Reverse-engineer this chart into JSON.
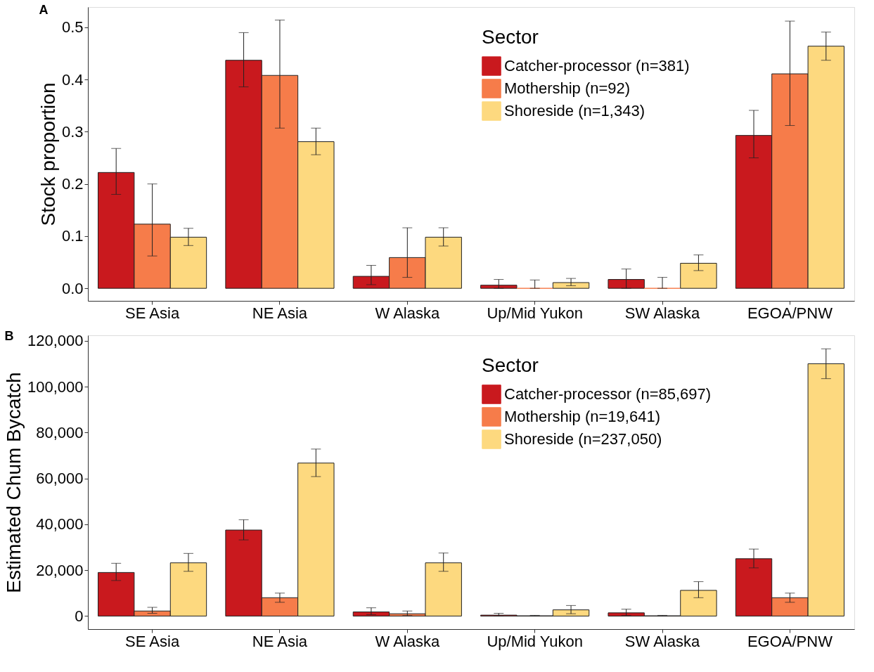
{
  "chart_data": [
    {
      "type": "bar",
      "title": "A",
      "ylabel": "Stock proportion",
      "legend_title": "Sector",
      "legend": "top",
      "grid": false,
      "categories": [
        "SE Asia",
        "NE Asia",
        "W Alaska",
        "Up/Mid Yukon",
        "SW Alaska",
        "EGOA/PNW"
      ],
      "ylim": [
        -0.024,
        0.539
      ],
      "yticks": [
        {
          "value": 0,
          "label": "0.0"
        },
        {
          "value": 0.1,
          "label": "0.1"
        },
        {
          "value": 0.2,
          "label": "0.2"
        },
        {
          "value": 0.3,
          "label": "0.3"
        },
        {
          "value": 0.4,
          "label": "0.4"
        },
        {
          "value": 0.5,
          "label": "0.5"
        }
      ],
      "series": [
        {
          "name": "Catcher-processor (n=381)",
          "color": "#c9191e",
          "values": [
            0.222,
            0.437,
            0.023,
            0.006,
            0.017,
            0.293
          ],
          "errors": [
            [
              0.18,
              0.268
            ],
            [
              0.386,
              0.49
            ],
            [
              0.007,
              0.044
            ],
            [
              0.0,
              0.017
            ],
            [
              0.0,
              0.037
            ],
            [
              0.25,
              0.341
            ]
          ]
        },
        {
          "name": "Mothership (n=92)",
          "color": "#f67c4a",
          "values": [
            0.123,
            0.408,
            0.059,
            0.0,
            0.0,
            0.411
          ],
          "errors": [
            [
              0.062,
              0.2
            ],
            [
              0.307,
              0.514
            ],
            [
              0.021,
              0.116
            ],
            [
              0.0,
              0.016
            ],
            [
              0.0,
              0.021
            ],
            [
              0.312,
              0.512
            ]
          ]
        },
        {
          "name": "Shoreside (n=1,343)",
          "color": "#fdd97f",
          "values": [
            0.098,
            0.281,
            0.098,
            0.011,
            0.048,
            0.464
          ],
          "errors": [
            [
              0.082,
              0.115
            ],
            [
              0.256,
              0.307
            ],
            [
              0.081,
              0.116
            ],
            [
              0.005,
              0.019
            ],
            [
              0.034,
              0.064
            ],
            [
              0.437,
              0.491
            ]
          ]
        }
      ]
    },
    {
      "type": "bar",
      "title": "B",
      "ylabel": "Estimated Chum Bycatch",
      "legend_title": "Sector",
      "legend": "top",
      "grid": false,
      "categories": [
        "SE Asia",
        "NE Asia",
        "W Alaska",
        "Up/Mid Yukon",
        "SW Alaska",
        "EGOA/PNW"
      ],
      "ylim": [
        -5700,
        122400
      ],
      "yticks": [
        0,
        {
          "value": 20000,
          "label": "20,000"
        },
        {
          "value": 40000,
          "label": "40,000"
        },
        {
          "value": 60000,
          "label": "60,000"
        },
        {
          "value": 80000,
          "label": "80,000"
        },
        {
          "value": 100000,
          "label": "100,000"
        },
        {
          "value": 120000,
          "label": "120,000"
        }
      ],
      "series": [
        {
          "name": "Catcher-processor (n=85,697)",
          "color": "#c9191e",
          "values": [
            19000,
            37500,
            1800,
            400,
            1400,
            25000
          ],
          "errors": [
            [
              15500,
              23000
            ],
            [
              33200,
              42000
            ],
            [
              600,
              3600
            ],
            [
              0,
              1200
            ],
            [
              200,
              3000
            ],
            [
              21000,
              29200
            ]
          ]
        },
        {
          "name": "Mothership (n=19,641)",
          "color": "#f67c4a",
          "values": [
            2200,
            8000,
            1000,
            100,
            100,
            8000
          ],
          "errors": [
            [
              1200,
              3800
            ],
            [
              6000,
              10000
            ],
            [
              200,
              2200
            ],
            [
              0,
              300
            ],
            [
              0,
              300
            ],
            [
              6000,
              10000
            ]
          ]
        },
        {
          "name": "Shoreside (n=237,050)",
          "color": "#fdd97f",
          "values": [
            23200,
            66700,
            23200,
            2700,
            11200,
            110000
          ],
          "errors": [
            [
              19500,
              27300
            ],
            [
              60800,
              72800
            ],
            [
              19500,
              27500
            ],
            [
              1000,
              4600
            ],
            [
              8000,
              15000
            ],
            [
              103500,
              116500
            ]
          ]
        }
      ]
    }
  ]
}
